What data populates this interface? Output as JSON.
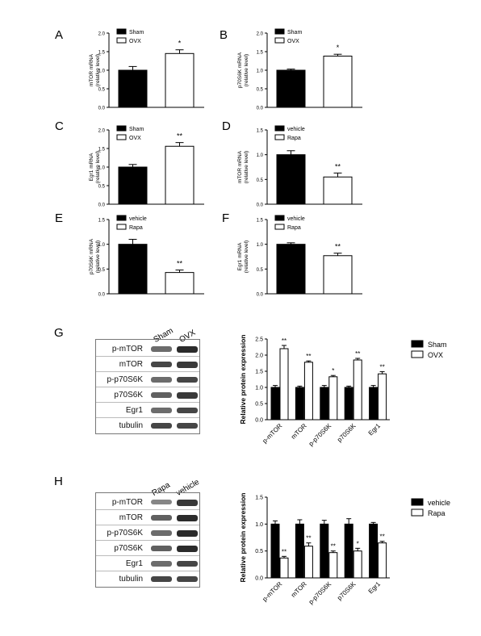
{
  "panels": {
    "A": "A",
    "B": "B",
    "C": "C",
    "D": "D",
    "E": "E",
    "F": "F",
    "G": "G",
    "H": "H"
  },
  "blots": {
    "G": {
      "headers": [
        "Sham",
        "OVX"
      ],
      "rows": [
        "p-mTOR",
        "mTOR",
        "p-p70S6K",
        "p70S6K",
        "Egr1",
        "tubulin"
      ]
    },
    "H": {
      "headers": [
        "Rapa",
        "vehicle"
      ],
      "rows": [
        "p-mTOR",
        "mTOR",
        "p-p70S6K",
        "p70S6K",
        "Egr1",
        "tubulin"
      ]
    }
  },
  "colors": {
    "bar_dark": "#000000",
    "bar_light": "#ffffff",
    "axis": "#000000"
  },
  "chart_data": [
    {
      "id": "A",
      "type": "bar",
      "ylabel": "mTOR mRNA\n(relative level)",
      "ylim": [
        0,
        2.0
      ],
      "yticks": [
        "0.0",
        "0.5",
        "1.0",
        "1.5",
        "2.0"
      ],
      "legend": [
        "Sham",
        "OVX"
      ],
      "values": [
        1.0,
        1.45
      ],
      "errors": [
        0.1,
        0.1
      ],
      "annotations": [
        "",
        "*"
      ]
    },
    {
      "id": "B",
      "type": "bar",
      "ylabel": "p70S6K mRNA\n(relative level)",
      "ylim": [
        0,
        2.0
      ],
      "yticks": [
        "0.0",
        "0.5",
        "1.0",
        "1.5",
        "2.0"
      ],
      "legend": [
        "Sham",
        "OVX"
      ],
      "values": [
        1.0,
        1.38
      ],
      "errors": [
        0.03,
        0.05
      ],
      "annotations": [
        "",
        "*"
      ]
    },
    {
      "id": "C",
      "type": "bar",
      "ylabel": "Egr1 mRNA\n(relative level)",
      "ylim": [
        0,
        2.0
      ],
      "yticks": [
        "0.0",
        "0.5",
        "1.0",
        "1.5",
        "2.0"
      ],
      "legend": [
        "Sham",
        "OVX"
      ],
      "values": [
        1.0,
        1.56
      ],
      "errors": [
        0.07,
        0.1
      ],
      "annotations": [
        "",
        "**"
      ]
    },
    {
      "id": "D",
      "type": "bar",
      "ylabel": "mTOR mRNA\n(relative level)",
      "ylim": [
        0,
        1.5
      ],
      "yticks": [
        "0.0",
        "0.5",
        "1.0",
        "1.5"
      ],
      "legend": [
        "vehicle",
        "Rapa"
      ],
      "values": [
        1.0,
        0.55
      ],
      "errors": [
        0.08,
        0.08
      ],
      "annotations": [
        "",
        "**"
      ]
    },
    {
      "id": "E",
      "type": "bar",
      "ylabel": "p70S6K mRNA\n(relative level)",
      "ylim": [
        0,
        1.5
      ],
      "yticks": [
        "0.0",
        "0.5",
        "1.0",
        "1.5"
      ],
      "legend": [
        "vehicle",
        "Rapa"
      ],
      "values": [
        1.0,
        0.43
      ],
      "errors": [
        0.1,
        0.05
      ],
      "annotations": [
        "",
        "**"
      ]
    },
    {
      "id": "F",
      "type": "bar",
      "ylabel": "Egr1 mRNA\n(relative level)",
      "ylim": [
        0,
        1.5
      ],
      "yticks": [
        "0.0",
        "0.5",
        "1.0",
        "1.5"
      ],
      "legend": [
        "vehicle",
        "Rapa"
      ],
      "values": [
        1.0,
        0.77
      ],
      "errors": [
        0.03,
        0.05
      ],
      "annotations": [
        "",
        "**"
      ]
    },
    {
      "id": "G",
      "type": "bar",
      "ylabel": "Relative protein expression",
      "ylim": [
        0,
        2.5
      ],
      "yticks": [
        "0.0",
        "0.5",
        "1.0",
        "1.5",
        "2.0",
        "2.5"
      ],
      "categories": [
        "p-mTOR",
        "mTOR",
        "p-p70S6K",
        "p70S6K",
        "Egr1"
      ],
      "series": [
        {
          "name": "Sham",
          "values": [
            1.0,
            1.0,
            1.0,
            1.0,
            1.0
          ],
          "errors": [
            0.06,
            0.04,
            0.06,
            0.04,
            0.06
          ]
        },
        {
          "name": "OVX",
          "values": [
            2.2,
            1.78,
            1.33,
            1.85,
            1.42
          ],
          "errors": [
            0.1,
            0.04,
            0.04,
            0.05,
            0.07
          ]
        }
      ],
      "annotations": [
        "**",
        "**",
        "*",
        "**",
        "**"
      ]
    },
    {
      "id": "H",
      "type": "bar",
      "ylabel": "Relative protein expression",
      "ylim": [
        0,
        1.5
      ],
      "yticks": [
        "0.0",
        "0.5",
        "1.0",
        "1.5"
      ],
      "categories": [
        "p-mTOR",
        "mTOR",
        "p-p70S6K",
        "p70S6K",
        "Egr1"
      ],
      "series": [
        {
          "name": "vehicle",
          "values": [
            1.0,
            1.0,
            1.0,
            1.0,
            1.0
          ],
          "errors": [
            0.06,
            0.08,
            0.07,
            0.1,
            0.03
          ]
        },
        {
          "name": "Rapa",
          "values": [
            0.37,
            0.59,
            0.47,
            0.5,
            0.65
          ],
          "errors": [
            0.03,
            0.06,
            0.03,
            0.05,
            0.03
          ]
        }
      ],
      "annotations": [
        "**",
        "**",
        "**",
        "*",
        "**"
      ]
    }
  ]
}
